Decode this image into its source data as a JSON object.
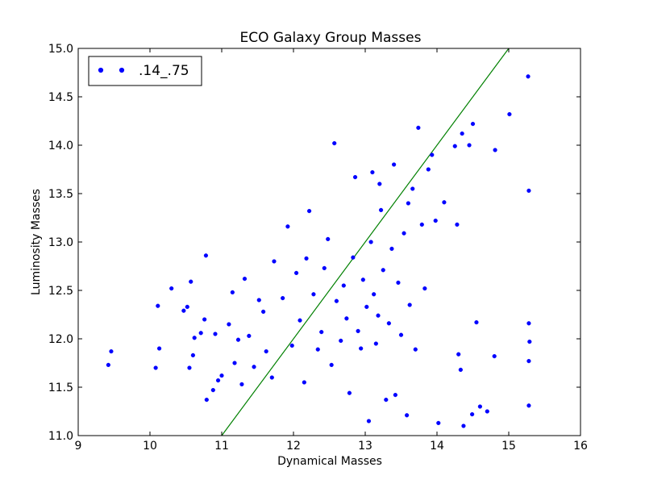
{
  "chart_data": {
    "type": "scatter",
    "title": "ECO Galaxy Group Masses",
    "xlabel": "Dynamical Masses",
    "ylabel": "Luminosity Masses",
    "xlim": [
      9,
      16
    ],
    "ylim": [
      11.0,
      15.0
    ],
    "xticks": [
      "9",
      "10",
      "11",
      "12",
      "13",
      "14",
      "15",
      "16"
    ],
    "yticks": [
      "11.0",
      "11.5",
      "12.0",
      "12.5",
      "13.0",
      "13.5",
      "14.0",
      "14.5",
      "15.0"
    ],
    "grid": false,
    "legend_position": "top-left",
    "point_color": "#0000ff",
    "line_color": "#008000",
    "series": [
      {
        "name": ".14_.75",
        "points": [
          [
            9.42,
            11.73
          ],
          [
            9.46,
            11.87
          ],
          [
            10.08,
            11.7
          ],
          [
            10.13,
            11.9
          ],
          [
            10.11,
            12.34
          ],
          [
            10.3,
            12.52
          ],
          [
            10.47,
            12.29
          ],
          [
            10.52,
            12.33
          ],
          [
            10.57,
            12.59
          ],
          [
            10.55,
            11.7
          ],
          [
            10.6,
            11.83
          ],
          [
            10.62,
            12.01
          ],
          [
            10.71,
            12.06
          ],
          [
            10.76,
            12.2
          ],
          [
            10.79,
            11.37
          ],
          [
            10.78,
            12.86
          ],
          [
            10.88,
            11.47
          ],
          [
            10.91,
            12.05
          ],
          [
            10.95,
            11.57
          ],
          [
            11.0,
            11.62
          ],
          [
            11.1,
            12.15
          ],
          [
            11.15,
            12.48
          ],
          [
            11.18,
            11.75
          ],
          [
            11.23,
            11.99
          ],
          [
            11.28,
            11.53
          ],
          [
            11.32,
            12.62
          ],
          [
            11.38,
            12.03
          ],
          [
            11.45,
            11.71
          ],
          [
            11.52,
            12.4
          ],
          [
            11.58,
            12.28
          ],
          [
            11.62,
            11.87
          ],
          [
            11.7,
            11.6
          ],
          [
            11.73,
            12.8
          ],
          [
            11.85,
            12.42
          ],
          [
            11.92,
            13.16
          ],
          [
            11.98,
            11.93
          ],
          [
            12.04,
            12.68
          ],
          [
            12.09,
            12.19
          ],
          [
            12.15,
            11.55
          ],
          [
            12.18,
            12.83
          ],
          [
            12.22,
            13.32
          ],
          [
            12.28,
            12.46
          ],
          [
            12.34,
            11.89
          ],
          [
            12.39,
            12.07
          ],
          [
            12.43,
            12.73
          ],
          [
            12.48,
            13.03
          ],
          [
            12.53,
            11.73
          ],
          [
            12.57,
            14.02
          ],
          [
            12.6,
            12.39
          ],
          [
            12.66,
            11.98
          ],
          [
            12.7,
            12.55
          ],
          [
            12.74,
            12.21
          ],
          [
            12.78,
            11.44
          ],
          [
            12.83,
            12.84
          ],
          [
            12.86,
            13.67
          ],
          [
            12.9,
            12.08
          ],
          [
            12.94,
            11.9
          ],
          [
            12.97,
            12.61
          ],
          [
            13.02,
            12.33
          ],
          [
            13.05,
            11.15
          ],
          [
            13.08,
            13.0
          ],
          [
            13.1,
            13.72
          ],
          [
            13.12,
            12.46
          ],
          [
            13.15,
            11.95
          ],
          [
            13.18,
            12.24
          ],
          [
            13.22,
            13.33
          ],
          [
            13.25,
            12.71
          ],
          [
            13.29,
            11.37
          ],
          [
            13.33,
            12.16
          ],
          [
            13.37,
            12.93
          ],
          [
            13.42,
            11.42
          ],
          [
            13.46,
            12.58
          ],
          [
            13.5,
            12.04
          ],
          [
            13.54,
            13.09
          ],
          [
            13.58,
            11.21
          ],
          [
            13.62,
            12.35
          ],
          [
            13.66,
            13.55
          ],
          [
            13.7,
            11.89
          ],
          [
            13.74,
            14.18
          ],
          [
            13.79,
            13.18
          ],
          [
            13.83,
            12.52
          ],
          [
            13.88,
            13.75
          ],
          [
            13.93,
            13.9
          ],
          [
            13.98,
            13.22
          ],
          [
            14.02,
            11.13
          ],
          [
            14.1,
            13.41
          ],
          [
            14.25,
            13.99
          ],
          [
            14.28,
            13.18
          ],
          [
            14.3,
            11.84
          ],
          [
            14.33,
            11.68
          ],
          [
            14.35,
            14.12
          ],
          [
            14.37,
            11.1
          ],
          [
            14.49,
            11.22
          ],
          [
            14.55,
            12.17
          ],
          [
            14.6,
            11.3
          ],
          [
            14.7,
            11.25
          ],
          [
            14.8,
            11.82
          ],
          [
            14.81,
            13.95
          ],
          [
            15.01,
            14.32
          ],
          [
            15.27,
            14.71
          ],
          [
            15.28,
            13.53
          ],
          [
            15.28,
            12.16
          ],
          [
            15.29,
            11.97
          ],
          [
            15.28,
            11.77
          ],
          [
            15.28,
            11.31
          ],
          [
            14.45,
            14.0
          ],
          [
            14.5,
            14.22
          ],
          [
            13.4,
            13.8
          ],
          [
            13.6,
            13.4
          ],
          [
            13.2,
            13.6
          ]
        ]
      }
    ],
    "reference_line": {
      "x": [
        11.0,
        15.0
      ],
      "y": [
        11.0,
        15.0
      ]
    }
  }
}
